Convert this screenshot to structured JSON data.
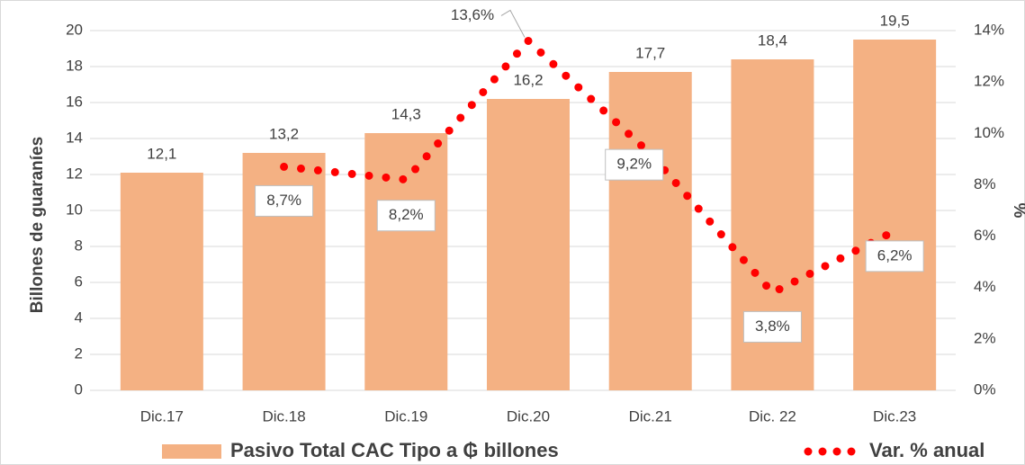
{
  "chart_data": {
    "type": "bar",
    "categories": [
      "Dic.17",
      "Dic.18",
      "Dic.19",
      "Dic.20",
      "Dic.21",
      "Dic. 22",
      "Dic.23"
    ],
    "series": [
      {
        "name": "Pasivo Total CAC Tipo a ₲ billones",
        "color": "#f4b183",
        "type": "bar",
        "values": [
          12.1,
          13.2,
          14.3,
          16.2,
          17.7,
          18.4,
          19.5
        ],
        "value_labels": [
          "12,1",
          "13,2",
          "14,3",
          "16,2",
          "17,7",
          "18,4",
          "19,5"
        ]
      },
      {
        "name": "Var. % anual",
        "color": "#ff0000",
        "type": "line",
        "axis": "y2",
        "values": [
          null,
          8.7,
          8.2,
          13.6,
          9.2,
          3.8,
          6.2
        ],
        "value_labels": [
          null,
          "8,7%",
          "8,2%",
          "13,6%",
          "9,2%",
          "3,8%",
          "6,2%"
        ]
      }
    ],
    "ylabel": "Billones de guaraníes",
    "y2label": "%",
    "ylim": [
      0,
      20
    ],
    "yticks": [
      0,
      2,
      4,
      6,
      8,
      10,
      12,
      14,
      16,
      18,
      20
    ],
    "y2lim": [
      0,
      14
    ],
    "y2ticks": [
      {
        "value": 0,
        "label": "0%"
      },
      {
        "value": 2,
        "label": "2%"
      },
      {
        "value": 4,
        "label": "4%"
      },
      {
        "value": 6,
        "label": "6%"
      },
      {
        "value": 8,
        "label": "8%"
      },
      {
        "value": 10,
        "label": "10%"
      },
      {
        "value": 12,
        "label": "12%"
      },
      {
        "value": 14,
        "label": "14%"
      }
    ],
    "grid": true,
    "legend": "bottom"
  }
}
